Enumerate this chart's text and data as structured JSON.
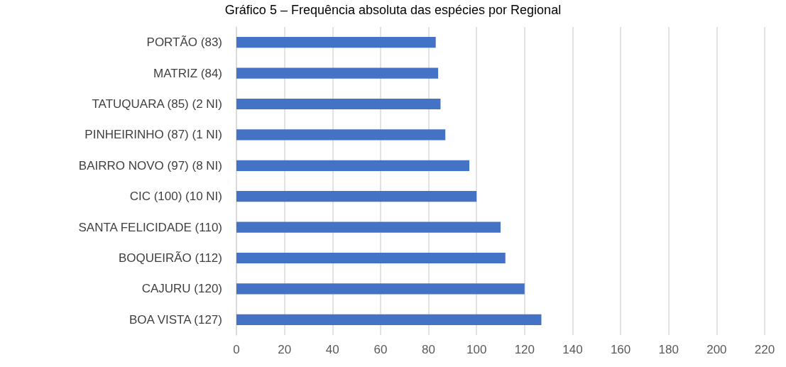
{
  "chart_data": {
    "type": "bar",
    "orientation": "horizontal",
    "title": "Gráfico 5 – Frequência absoluta das espécies por Regional",
    "categories": [
      "PORTÃO (83)",
      "MATRIZ (84)",
      "TATUQUARA (85) (2 NI)",
      "PINHEIRINHO (87) (1 NI)",
      "BAIRRO NOVO (97) (8 NI)",
      "CIC (100) (10 NI)",
      "SANTA FELICIDADE (110)",
      "BOQUEIRÃO (112)",
      "CAJURU (120)",
      "BOA VISTA (127)"
    ],
    "values": [
      83,
      84,
      85,
      87,
      97,
      100,
      110,
      112,
      120,
      127
    ],
    "color": "#4472c4",
    "xlim": [
      0,
      220
    ],
    "xticks": [
      0,
      20,
      40,
      60,
      80,
      100,
      120,
      140,
      160,
      180,
      200,
      220
    ],
    "grid": "x"
  }
}
